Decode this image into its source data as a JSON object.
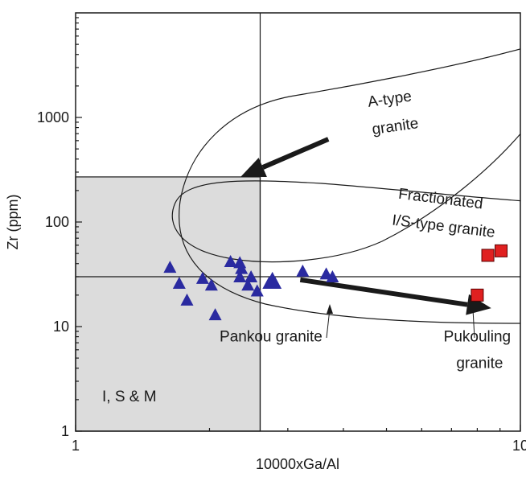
{
  "chart_data": {
    "type": "scatter",
    "xlabel": "10000xGa/Al",
    "ylabel": "Zr (ppm)",
    "xscale": "log",
    "yscale": "log",
    "xlim": [
      1,
      10
    ],
    "ylim": [
      1,
      10000
    ],
    "x_ticks": [
      {
        "value": 1,
        "label": "1"
      },
      {
        "value": 10,
        "label": "10"
      }
    ],
    "y_ticks": [
      {
        "value": 1,
        "label": "1"
      },
      {
        "value": 10,
        "label": "10"
      },
      {
        "value": 100,
        "label": "100"
      },
      {
        "value": 1000,
        "label": "1000"
      }
    ],
    "reference_lines": [
      {
        "orientation": "vertical",
        "x": 2.6
      },
      {
        "orientation": "horizontal",
        "y": 30
      }
    ],
    "shaded_region": {
      "label": "I, S & M",
      "x": [
        1,
        2.6
      ],
      "y": [
        1,
        270
      ],
      "color": "#dcdcdc"
    },
    "annotations": [
      {
        "text": "A-type",
        "x": 5.1,
        "y": 1350
      },
      {
        "text": "granite",
        "x": 5.25,
        "y": 740
      },
      {
        "text": "Fractionated",
        "x": 6.6,
        "y": 150
      },
      {
        "text": "I/S-type granite",
        "x": 6.7,
        "y": 82
      },
      {
        "text": "Pankou granite",
        "x": 2.75,
        "y": 7.2
      },
      {
        "text": "Pukouling",
        "x": 8.0,
        "y": 7.2
      },
      {
        "text": "granite",
        "x": 8.1,
        "y": 4.0
      }
    ],
    "series": [
      {
        "name": "Pankou granite",
        "marker": "triangle",
        "color": "#2a2aa0",
        "points": [
          {
            "x": 1.63,
            "y": 37
          },
          {
            "x": 1.71,
            "y": 26
          },
          {
            "x": 1.78,
            "y": 18
          },
          {
            "x": 1.93,
            "y": 29
          },
          {
            "x": 2.02,
            "y": 25
          },
          {
            "x": 2.06,
            "y": 13
          },
          {
            "x": 2.23,
            "y": 42
          },
          {
            "x": 2.34,
            "y": 41
          },
          {
            "x": 2.36,
            "y": 36
          },
          {
            "x": 2.48,
            "y": 30
          },
          {
            "x": 2.44,
            "y": 25
          },
          {
            "x": 2.56,
            "y": 22
          },
          {
            "x": 2.77,
            "y": 29
          },
          {
            "x": 2.81,
            "y": 26
          },
          {
            "x": 2.72,
            "y": 26
          },
          {
            "x": 3.24,
            "y": 34
          },
          {
            "x": 3.66,
            "y": 32
          },
          {
            "x": 3.78,
            "y": 30
          },
          {
            "x": 2.34,
            "y": 30
          }
        ]
      },
      {
        "name": "Pukouling granite",
        "marker": "square",
        "color": "#e02020",
        "points": [
          {
            "x": 8.0,
            "y": 20
          },
          {
            "x": 8.45,
            "y": 48
          },
          {
            "x": 9.05,
            "y": 53
          }
        ]
      }
    ],
    "arrows": [
      {
        "from": {
          "x": 3.7,
          "y": 620
        },
        "to": {
          "x": 2.35,
          "y": 270
        }
      },
      {
        "from": {
          "x": 3.2,
          "y": 28
        },
        "to": {
          "x": 8.6,
          "y": 15
        }
      }
    ],
    "line_color": "#1a1a1a"
  }
}
